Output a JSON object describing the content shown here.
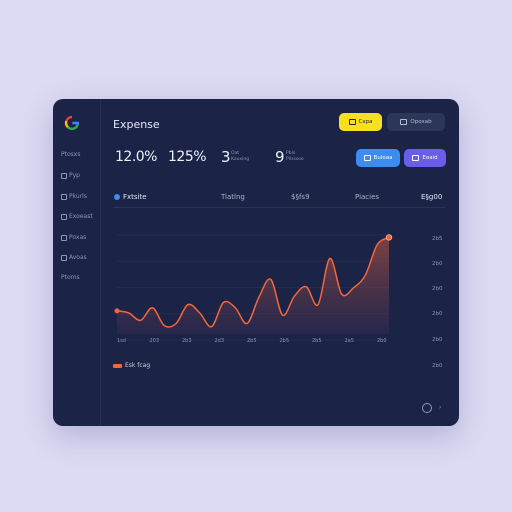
{
  "colors": {
    "background": "#dcdaf4",
    "card": "#1b2447",
    "accent_yellow": "#f7e01f",
    "accent_blue": "#3d8cf0",
    "accent_purple": "#6a5de8",
    "line": "#f2663a"
  },
  "header": {
    "title": "Expense"
  },
  "sidebar": {
    "items": [
      {
        "label": "Ptosxs",
        "icon": "none"
      },
      {
        "label": "Pyp",
        "icon": "square-icon"
      },
      {
        "label": "Pkurls",
        "icon": "grid-icon"
      },
      {
        "label": "Exoeast",
        "icon": "list-icon"
      },
      {
        "label": "Poxas",
        "icon": "doc-icon"
      },
      {
        "label": "Avoas",
        "icon": "grid-icon"
      },
      {
        "label": "Ptoms",
        "icon": "none"
      }
    ]
  },
  "toolbar": {
    "btn_yellow": "Cxpa",
    "btn_dark": "Opoxab",
    "btn_blue": "Buloaa",
    "btn_purple": "Eoaid"
  },
  "stats": {
    "pct1": "12.0%",
    "pct2": "125%",
    "num1": "3",
    "num1_sub1": "Oat",
    "num1_sub2": "Kauxing",
    "num2": "9",
    "num2_sub1": "Pbls",
    "num2_sub2": "Piisssoo"
  },
  "row": {
    "col1": "Fxtsite",
    "col2": "Tiatlng",
    "col3": "$§fs9",
    "col4": "Piacies",
    "col5": "E§g00"
  },
  "chart_data": {
    "type": "area",
    "title": "",
    "xlabel": "",
    "ylabel": "",
    "x_ticks": [
      "1sd",
      "203",
      "2b3",
      "2d3",
      "2b5",
      "2b5",
      "2b5",
      "2a5",
      "2b0"
    ],
    "y_ticks": [
      "2b5",
      "2b0",
      "2b0",
      "2b0",
      "2b0",
      "2b0"
    ],
    "ylim": [
      0,
      100
    ],
    "series": [
      {
        "name": "",
        "values": [
          22,
          20,
          13,
          25,
          8,
          10,
          28,
          20,
          7,
          30,
          25,
          10,
          35,
          52,
          18,
          36,
          45,
          28,
          72,
          38,
          44,
          56,
          85,
          92
        ]
      }
    ],
    "legend": [
      "Esk fcag"
    ]
  },
  "footer": {
    "help": "?",
    "arrow": "›"
  }
}
